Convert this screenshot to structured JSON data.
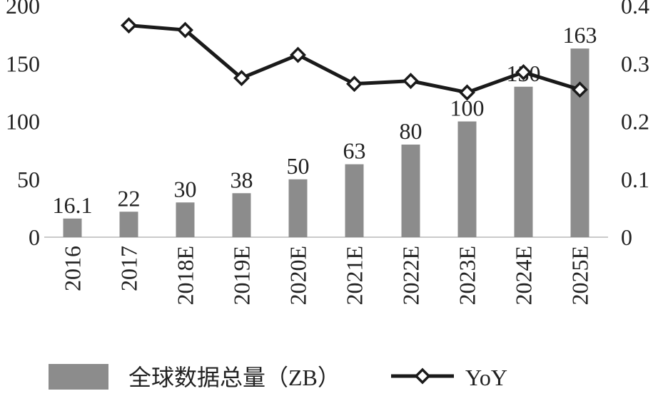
{
  "chart_data": {
    "type": "bar",
    "categories": [
      "2016",
      "2017",
      "2018E",
      "2019E",
      "2020E",
      "2021E",
      "2022E",
      "2023E",
      "2024E",
      "2025E"
    ],
    "series": [
      {
        "name": "全球数据总量（ZB）",
        "type": "bar",
        "axis": "left",
        "color": "#8c8c8c",
        "values": [
          16.1,
          22,
          30,
          38,
          50,
          63,
          80,
          100,
          130,
          163
        ],
        "labels": [
          "16.1",
          "22",
          "30",
          "38",
          "50",
          "63",
          "80",
          "100",
          "130",
          "163"
        ]
      },
      {
        "name": "YoY",
        "type": "line",
        "axis": "right",
        "color": "#1a1a1a",
        "marker": "diamond",
        "values": [
          null,
          0.366,
          0.358,
          0.275,
          0.315,
          0.265,
          0.27,
          0.25,
          0.285,
          0.255
        ]
      }
    ],
    "y_left": {
      "ylim": [
        0,
        200
      ],
      "ticks": [
        "0",
        "50",
        "100",
        "150",
        "200"
      ]
    },
    "y_right": {
      "ylim": [
        0,
        0.4
      ],
      "ticks": [
        "0",
        "0.1",
        "0.2",
        "0.3",
        "0.4"
      ]
    },
    "legend": "bottom",
    "grid": false
  }
}
